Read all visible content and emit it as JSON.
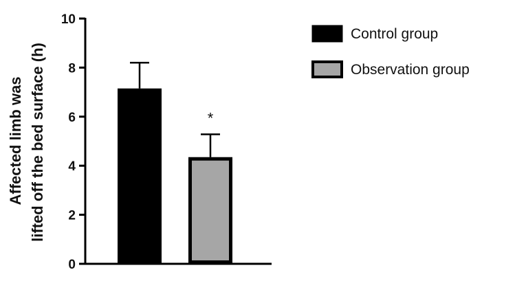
{
  "chart_data": {
    "type": "bar",
    "categories": [
      "Control group",
      "Observation group"
    ],
    "values": [
      7.15,
      4.35
    ],
    "errors": [
      1.05,
      0.93
    ],
    "ylabel_lines": [
      "Affected limb was",
      "lifted off the bed surface (h)"
    ],
    "ylim": [
      0,
      10
    ],
    "yticks": [
      0,
      2,
      4,
      6,
      8,
      10
    ],
    "grid": false,
    "legend": {
      "position": "top-right",
      "entries": [
        "Control group",
        "Observation group"
      ]
    },
    "annotations": [
      {
        "category_index": 1,
        "text": "*"
      }
    ],
    "colors": {
      "control_fill": "#000000",
      "observation_fill": "#a6a6a6",
      "stroke": "#000000"
    }
  }
}
